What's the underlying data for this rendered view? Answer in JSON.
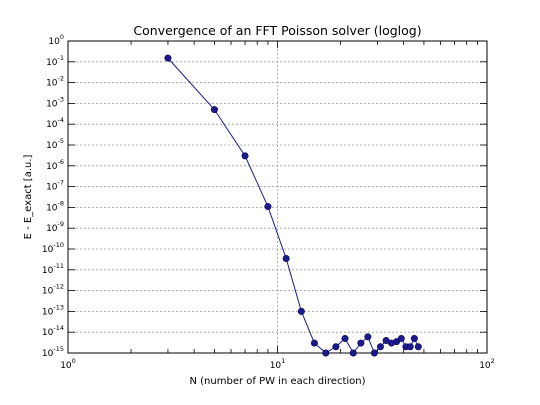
{
  "chart_data": {
    "type": "line",
    "title": "Convergence of an FFT Poisson solver (loglog)",
    "xlabel": "N (number of PW in each direction)",
    "ylabel": "E  -  E_exact  [a.u.]",
    "xscale": "log",
    "yscale": "log",
    "xlim": [
      1,
      100
    ],
    "ylim": [
      1e-15,
      1
    ],
    "grid": true,
    "x_ticks": [
      {
        "base": "10",
        "exp": "0",
        "value": 1
      },
      {
        "base": "10",
        "exp": "1",
        "value": 10
      },
      {
        "base": "10",
        "exp": "2",
        "value": 100
      }
    ],
    "y_ticks": [
      {
        "base": "10",
        "exp": "0",
        "value": 1
      },
      {
        "base": "10",
        "exp": "-1",
        "value": 0.1
      },
      {
        "base": "10",
        "exp": "-2",
        "value": 0.01
      },
      {
        "base": "10",
        "exp": "-3",
        "value": 0.001
      },
      {
        "base": "10",
        "exp": "-4",
        "value": 0.0001
      },
      {
        "base": "10",
        "exp": "-5",
        "value": 1e-05
      },
      {
        "base": "10",
        "exp": "-6",
        "value": 1e-06
      },
      {
        "base": "10",
        "exp": "-7",
        "value": 1e-07
      },
      {
        "base": "10",
        "exp": "-8",
        "value": 1e-08
      },
      {
        "base": "10",
        "exp": "-9",
        "value": 1e-09
      },
      {
        "base": "10",
        "exp": "-10",
        "value": 1e-10
      },
      {
        "base": "10",
        "exp": "-11",
        "value": 1e-11
      },
      {
        "base": "10",
        "exp": "-12",
        "value": 1e-12
      },
      {
        "base": "10",
        "exp": "-13",
        "value": 1e-13
      },
      {
        "base": "10",
        "exp": "-14",
        "value": 1e-14
      },
      {
        "base": "10",
        "exp": "-15",
        "value": 1e-15
      }
    ],
    "series": [
      {
        "color": "#1a1a8c",
        "x": [
          3,
          5,
          7,
          9,
          11,
          13,
          15,
          17,
          19,
          21,
          23,
          25,
          27,
          29,
          31,
          33,
          35,
          37,
          39,
          41,
          43,
          45,
          47
        ],
        "y": [
          0.15,
          0.0005,
          3e-06,
          1.1e-08,
          3.5e-11,
          1e-13,
          3e-15,
          1e-15,
          2e-15,
          5e-15,
          1e-15,
          3e-15,
          6e-15,
          1e-15,
          2e-15,
          4e-15,
          3e-15,
          3.5e-15,
          5e-15,
          2e-15,
          2e-15,
          5e-15,
          2e-15
        ]
      }
    ]
  }
}
